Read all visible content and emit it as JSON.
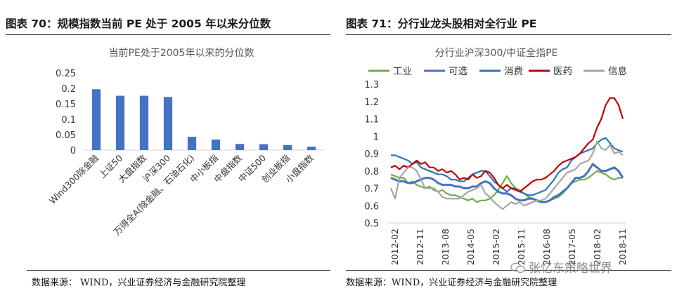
{
  "left": {
    "figure_title": "图表 70：规模指数当前 PE 处于 2005 年以来分位数",
    "source": "数据来源： WIND，兴业证券经济与金融研究院整理"
  },
  "right": {
    "figure_title": "图表 71：分行业龙头股相对全行业 PE",
    "source": "数据来源：WIND，兴业证券经济与金融研究院整理"
  },
  "watermark": {
    "text": "张忆东策略世界",
    "icon": "wechat-icon"
  },
  "chart_data": [
    {
      "type": "bar",
      "title": "当前PE处于2005年以来的分位数",
      "categories": [
        "Wind300除金融",
        "上证50",
        "大盘指数",
        "沪深300",
        "万得全A(除金融、石油石化)",
        "中小板指",
        "中盘指数",
        "中证500",
        "创业板指",
        "小盘指数"
      ],
      "values": [
        0.197,
        0.176,
        0.176,
        0.172,
        0.043,
        0.034,
        0.02,
        0.019,
        0.016,
        0.011
      ],
      "yticks": [
        "0",
        "0.05",
        "0.1",
        "0.15",
        "0.2",
        "0.25"
      ],
      "ylim": [
        0,
        0.25
      ],
      "color": "#4472c4",
      "xlabel": "",
      "ylabel": ""
    },
    {
      "type": "line",
      "title": "分行业沪深300/中证全指PE",
      "x_ticks": [
        "2012-02",
        "2012-11",
        "2013-08",
        "2014-05",
        "2015-02",
        "2015-11",
        "2016-08",
        "2017-05",
        "2018-02",
        "2018-11"
      ],
      "yticks": [
        "0.5",
        "0.6",
        "0.7",
        "0.8",
        "0.9",
        "1",
        "1.1",
        "1.2",
        "1.3"
      ],
      "ylim": [
        0.5,
        1.3
      ],
      "legend_position": "top",
      "series": [
        {
          "name": "工业",
          "color": "#70ad47",
          "width": 2.2,
          "values": [
            0.78,
            0.77,
            0.76,
            0.76,
            0.73,
            0.74,
            0.72,
            0.71,
            0.7,
            0.71,
            0.69,
            0.68,
            0.69,
            0.67,
            0.66,
            0.66,
            0.65,
            0.64,
            0.63,
            0.64,
            0.62,
            0.63,
            0.63,
            0.64,
            0.66,
            0.69,
            0.73,
            0.77,
            0.73,
            0.7,
            0.69,
            0.67,
            0.65,
            0.64,
            0.63,
            0.62,
            0.62,
            0.63,
            0.64,
            0.65,
            0.67,
            0.7,
            0.73,
            0.74,
            0.75,
            0.75,
            0.76,
            0.78,
            0.8,
            0.79,
            0.78,
            0.76,
            0.75,
            0.76,
            0.76
          ]
        },
        {
          "name": "可选",
          "color": "#4472c4",
          "width": 3.0,
          "values": [
            0.76,
            0.75,
            0.74,
            0.74,
            0.73,
            0.73,
            0.74,
            0.75,
            0.76,
            0.76,
            0.75,
            0.73,
            0.72,
            0.72,
            0.72,
            0.71,
            0.71,
            0.7,
            0.7,
            0.71,
            0.71,
            0.73,
            0.74,
            0.73,
            0.7,
            0.68,
            0.67,
            0.67,
            0.66,
            0.64,
            0.63,
            0.63,
            0.64,
            0.64,
            0.63,
            0.62,
            0.62,
            0.63,
            0.65,
            0.66,
            0.68,
            0.7,
            0.73,
            0.76,
            0.76,
            0.77,
            0.8,
            0.84,
            0.82,
            0.8,
            0.8,
            0.81,
            0.82,
            0.8,
            0.76
          ]
        },
        {
          "name": "消费",
          "color": "#2e75b6",
          "width": 2.2,
          "values": [
            0.89,
            0.89,
            0.88,
            0.87,
            0.86,
            0.84,
            0.85,
            0.82,
            0.81,
            0.8,
            0.79,
            0.78,
            0.78,
            0.77,
            0.75,
            0.75,
            0.74,
            0.74,
            0.76,
            0.78,
            0.79,
            0.8,
            0.8,
            0.77,
            0.74,
            0.72,
            0.7,
            0.68,
            0.7,
            0.7,
            0.68,
            0.67,
            0.66,
            0.66,
            0.67,
            0.68,
            0.69,
            0.72,
            0.75,
            0.79,
            0.81,
            0.82,
            0.86,
            0.88,
            0.9,
            0.91,
            0.92,
            0.93,
            0.96,
            0.98,
            0.99,
            0.96,
            0.93,
            0.92,
            0.91
          ]
        },
        {
          "name": "医药",
          "color": "#c00000",
          "width": 2.2,
          "values": [
            0.82,
            0.83,
            0.81,
            0.83,
            0.82,
            0.84,
            0.86,
            0.84,
            0.85,
            0.82,
            0.82,
            0.8,
            0.81,
            0.79,
            0.8,
            0.78,
            0.75,
            0.76,
            0.75,
            0.78,
            0.76,
            0.77,
            0.8,
            0.79,
            0.76,
            0.72,
            0.7,
            0.72,
            0.7,
            0.69,
            0.68,
            0.7,
            0.72,
            0.74,
            0.75,
            0.75,
            0.76,
            0.78,
            0.8,
            0.83,
            0.85,
            0.86,
            0.87,
            0.88,
            0.9,
            0.93,
            0.96,
            0.98,
            1.05,
            1.1,
            1.18,
            1.22,
            1.22,
            1.18,
            1.1
          ]
        },
        {
          "name": "信息",
          "color": "#a5a5a5",
          "width": 2.2,
          "values": [
            0.7,
            0.64,
            0.76,
            0.79,
            0.82,
            0.82,
            0.8,
            0.75,
            0.7,
            0.7,
            0.7,
            0.68,
            0.65,
            0.64,
            0.64,
            0.64,
            0.64,
            0.66,
            0.68,
            0.69,
            0.7,
            0.72,
            0.67,
            0.65,
            0.62,
            0.6,
            0.58,
            0.6,
            0.62,
            0.61,
            0.62,
            0.6,
            0.61,
            0.62,
            0.63,
            0.63,
            0.64,
            0.67,
            0.7,
            0.73,
            0.76,
            0.79,
            0.8,
            0.81,
            0.84,
            0.85,
            0.86,
            0.9,
            0.97,
            0.93,
            0.92,
            0.95,
            0.9,
            0.91,
            0.89
          ]
        }
      ]
    }
  ]
}
